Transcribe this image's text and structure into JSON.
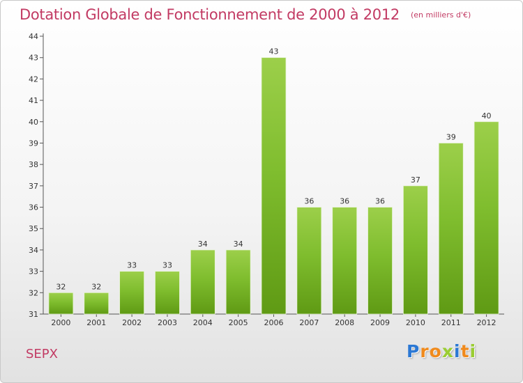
{
  "chart_data": {
    "type": "bar",
    "title": "Dotation Globale de Fonctionnement de 2000 à 2012",
    "subtitle": "(en milliers d'€)",
    "categories": [
      "2000",
      "2001",
      "2002",
      "2003",
      "2004",
      "2005",
      "2006",
      "2007",
      "2008",
      "2009",
      "2010",
      "2011",
      "2012"
    ],
    "values": [
      32,
      32,
      33,
      33,
      34,
      34,
      43,
      36,
      36,
      36,
      37,
      39,
      40
    ],
    "ylim": [
      31,
      44
    ],
    "yticks": [
      "31",
      "32",
      "33",
      "34",
      "35",
      "36",
      "37",
      "38",
      "39",
      "40",
      "41",
      "42",
      "43",
      "44"
    ],
    "xlabel": "",
    "ylabel": "",
    "grid": false,
    "legend": "none",
    "bar_color": "#7fbd2e",
    "bar_color_light": "#9ccf4a",
    "bar_color_dark": "#5f9a14"
  },
  "commune": "SEPX",
  "logo": {
    "letters": [
      "P",
      "r",
      "o",
      "x",
      "i",
      "t",
      "i"
    ],
    "colors": [
      "#2b78d4",
      "#f08a1c",
      "#f08a1c",
      "#9acd32",
      "#2b78d4",
      "#f08a1c",
      "#9acd32"
    ]
  }
}
